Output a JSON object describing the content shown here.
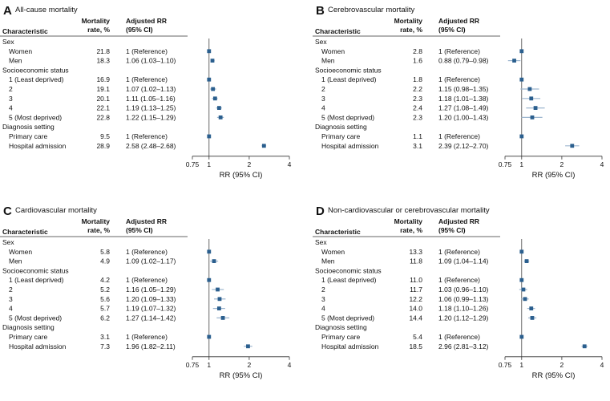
{
  "figure": {
    "headers": {
      "characteristic": "Characteristic",
      "rate_line1": "Mortality",
      "rate_line2": "rate, %",
      "rr_line1": "Adjusted RR",
      "rr_line2": "(95% CI)"
    },
    "x_axis_label": "RR (95% CI)",
    "x_ticks": [
      "0.75",
      "1",
      "2",
      "4"
    ],
    "marker_color": "#2b5f8e",
    "ci_color": "#9db6cf"
  },
  "chart_data": [
    {
      "type": "forest",
      "letter": "A",
      "title": "All-cause mortality",
      "xlabel": "RR (95% CI)",
      "xscale": "log",
      "xlim": [
        0.75,
        4
      ],
      "reference_line": 1,
      "groups": [
        {
          "name": "Sex",
          "rows": [
            {
              "label": "Women",
              "rate": "21.8",
              "rr_text": "1 (Reference)",
              "rr": 1,
              "lo": 1,
              "hi": 1
            },
            {
              "label": "Men",
              "rate": "18.3",
              "rr_text": "1.06 (1.03–1.10)",
              "rr": 1.06,
              "lo": 1.03,
              "hi": 1.1
            }
          ]
        },
        {
          "name": "Socioeconomic status",
          "rows": [
            {
              "label": "1 (Least deprived)",
              "rate": "16.9",
              "rr_text": "1 (Reference)",
              "rr": 1,
              "lo": 1,
              "hi": 1
            },
            {
              "label": "2",
              "rate": "19.1",
              "rr_text": "1.07 (1.02–1.13)",
              "rr": 1.07,
              "lo": 1.02,
              "hi": 1.13
            },
            {
              "label": "3",
              "rate": "20.1",
              "rr_text": "1.11 (1.05–1.16)",
              "rr": 1.11,
              "lo": 1.05,
              "hi": 1.16
            },
            {
              "label": "4",
              "rate": "22.1",
              "rr_text": "1.19 (1.13–1.25)",
              "rr": 1.19,
              "lo": 1.13,
              "hi": 1.25
            },
            {
              "label": "5 (Most deprived)",
              "rate": "22.8",
              "rr_text": "1.22 (1.15–1.29)",
              "rr": 1.22,
              "lo": 1.15,
              "hi": 1.29
            }
          ]
        },
        {
          "name": "Diagnosis setting",
          "rows": [
            {
              "label": "Primary care",
              "rate": "9.5",
              "rr_text": "1 (Reference)",
              "rr": 1,
              "lo": 1,
              "hi": 1
            },
            {
              "label": "Hospital admission",
              "rate": "28.9",
              "rr_text": "2.58 (2.48–2.68)",
              "rr": 2.58,
              "lo": 2.48,
              "hi": 2.68
            }
          ]
        }
      ]
    },
    {
      "type": "forest",
      "letter": "B",
      "title": "Cerebrovascular mortality",
      "xlabel": "RR (95% CI)",
      "xscale": "log",
      "xlim": [
        0.75,
        4
      ],
      "reference_line": 1,
      "groups": [
        {
          "name": "Sex",
          "rows": [
            {
              "label": "Women",
              "rate": "2.8",
              "rr_text": "1 (Reference)",
              "rr": 1,
              "lo": 1,
              "hi": 1
            },
            {
              "label": "Men",
              "rate": "1.6",
              "rr_text": "0.88 (0.79–0.98)",
              "rr": 0.88,
              "lo": 0.79,
              "hi": 0.98
            }
          ]
        },
        {
          "name": "Socioeconomic status",
          "rows": [
            {
              "label": "1 (Least deprived)",
              "rate": "1.8",
              "rr_text": "1 (Reference)",
              "rr": 1,
              "lo": 1,
              "hi": 1
            },
            {
              "label": "2",
              "rate": "2.2",
              "rr_text": "1.15 (0.98–1.35)",
              "rr": 1.15,
              "lo": 0.98,
              "hi": 1.35
            },
            {
              "label": "3",
              "rate": "2.3",
              "rr_text": "1.18 (1.01–1.38)",
              "rr": 1.18,
              "lo": 1.01,
              "hi": 1.38
            },
            {
              "label": "4",
              "rate": "2.4",
              "rr_text": "1.27 (1.08–1.49)",
              "rr": 1.27,
              "lo": 1.08,
              "hi": 1.49
            },
            {
              "label": "5 (Most deprived)",
              "rate": "2.3",
              "rr_text": "1.20 (1.00–1.43)",
              "rr": 1.2,
              "lo": 1.0,
              "hi": 1.43
            }
          ]
        },
        {
          "name": "Diagnosis setting",
          "rows": [
            {
              "label": "Primary care",
              "rate": "1.1",
              "rr_text": "1 (Reference)",
              "rr": 1,
              "lo": 1,
              "hi": 1
            },
            {
              "label": "Hospital admission",
              "rate": "3.1",
              "rr_text": "2.39 (2.12–2.70)",
              "rr": 2.39,
              "lo": 2.12,
              "hi": 2.7
            }
          ]
        }
      ]
    },
    {
      "type": "forest",
      "letter": "C",
      "title": "Cardiovascular mortality",
      "xlabel": "RR (95% CI)",
      "xscale": "log",
      "xlim": [
        0.75,
        4
      ],
      "reference_line": 1,
      "groups": [
        {
          "name": "Sex",
          "rows": [
            {
              "label": "Women",
              "rate": "5.8",
              "rr_text": "1 (Reference)",
              "rr": 1,
              "lo": 1,
              "hi": 1
            },
            {
              "label": "Men",
              "rate": "4.9",
              "rr_text": "1.09 (1.02–1.17)",
              "rr": 1.09,
              "lo": 1.02,
              "hi": 1.17
            }
          ]
        },
        {
          "name": "Socioeconomic status",
          "rows": [
            {
              "label": "1 (Least deprived)",
              "rate": "4.2",
              "rr_text": "1 (Reference)",
              "rr": 1,
              "lo": 1,
              "hi": 1
            },
            {
              "label": "2",
              "rate": "5.2",
              "rr_text": "1.16 (1.05–1.29)",
              "rr": 1.16,
              "lo": 1.05,
              "hi": 1.29
            },
            {
              "label": "3",
              "rate": "5.6",
              "rr_text": "1.20 (1.09–1.33)",
              "rr": 1.2,
              "lo": 1.09,
              "hi": 1.33
            },
            {
              "label": "4",
              "rate": "5.7",
              "rr_text": "1.19 (1.07–1.32)",
              "rr": 1.19,
              "lo": 1.07,
              "hi": 1.32
            },
            {
              "label": "5 (Most deprived)",
              "rate": "6.2",
              "rr_text": "1.27 (1.14–1.42)",
              "rr": 1.27,
              "lo": 1.14,
              "hi": 1.42
            }
          ]
        },
        {
          "name": "Diagnosis setting",
          "rows": [
            {
              "label": "Primary care",
              "rate": "3.1",
              "rr_text": "1 (Reference)",
              "rr": 1,
              "lo": 1,
              "hi": 1
            },
            {
              "label": "Hospital admission",
              "rate": "7.3",
              "rr_text": "1.96 (1.82–2.11)",
              "rr": 1.96,
              "lo": 1.82,
              "hi": 2.11
            }
          ]
        }
      ]
    },
    {
      "type": "forest",
      "letter": "D",
      "title": "Non-cardiovascular or cerebrovascular mortality",
      "xlabel": "RR (95% CI)",
      "xscale": "log",
      "xlim": [
        0.75,
        4
      ],
      "reference_line": 1,
      "groups": [
        {
          "name": "Sex",
          "rows": [
            {
              "label": "Women",
              "rate": "13.3",
              "rr_text": "1 (Reference)",
              "rr": 1,
              "lo": 1,
              "hi": 1
            },
            {
              "label": "Men",
              "rate": "11.8",
              "rr_text": "1.09 (1.04–1.14)",
              "rr": 1.09,
              "lo": 1.04,
              "hi": 1.14
            }
          ]
        },
        {
          "name": "Socioeconomic status",
          "rows": [
            {
              "label": "1 (Least deprived)",
              "rate": "11.0",
              "rr_text": "1 (Reference)",
              "rr": 1,
              "lo": 1,
              "hi": 1
            },
            {
              "label": "2",
              "rate": "11.7",
              "rr_text": "1.03 (0.96–1.10)",
              "rr": 1.03,
              "lo": 0.96,
              "hi": 1.1
            },
            {
              "label": "3",
              "rate": "12.2",
              "rr_text": "1.06 (0.99–1.13)",
              "rr": 1.06,
              "lo": 0.99,
              "hi": 1.13
            },
            {
              "label": "4",
              "rate": "14.0",
              "rr_text": "1.18 (1.10–1.26)",
              "rr": 1.18,
              "lo": 1.1,
              "hi": 1.26
            },
            {
              "label": "5 (Most deprived)",
              "rate": "14.4",
              "rr_text": "1.20 (1.12–1.29)",
              "rr": 1.2,
              "lo": 1.12,
              "hi": 1.29
            }
          ]
        },
        {
          "name": "Diagnosis setting",
          "rows": [
            {
              "label": "Primary care",
              "rate": "5.4",
              "rr_text": "1 (Reference)",
              "rr": 1,
              "lo": 1,
              "hi": 1
            },
            {
              "label": "Hospital admission",
              "rate": "18.5",
              "rr_text": "2.96 (2.81–3.12)",
              "rr": 2.96,
              "lo": 2.81,
              "hi": 3.12
            }
          ]
        }
      ]
    }
  ]
}
